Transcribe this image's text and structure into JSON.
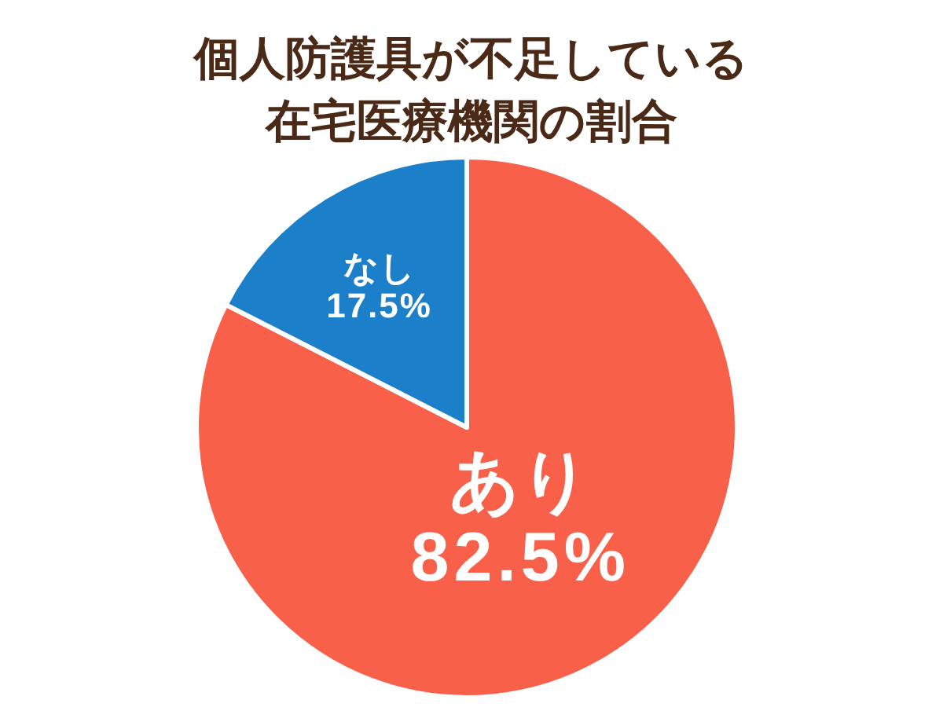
{
  "chart_data": {
    "type": "pie",
    "title": "個人防護具が不足している在宅医療機関の割合",
    "categories": [
      "あり",
      "なし"
    ],
    "values": [
      82.5,
      17.5
    ],
    "value_labels": [
      "82.5%",
      "17.5%"
    ],
    "colors": [
      "#f9604a",
      "#1b80c9"
    ]
  }
}
